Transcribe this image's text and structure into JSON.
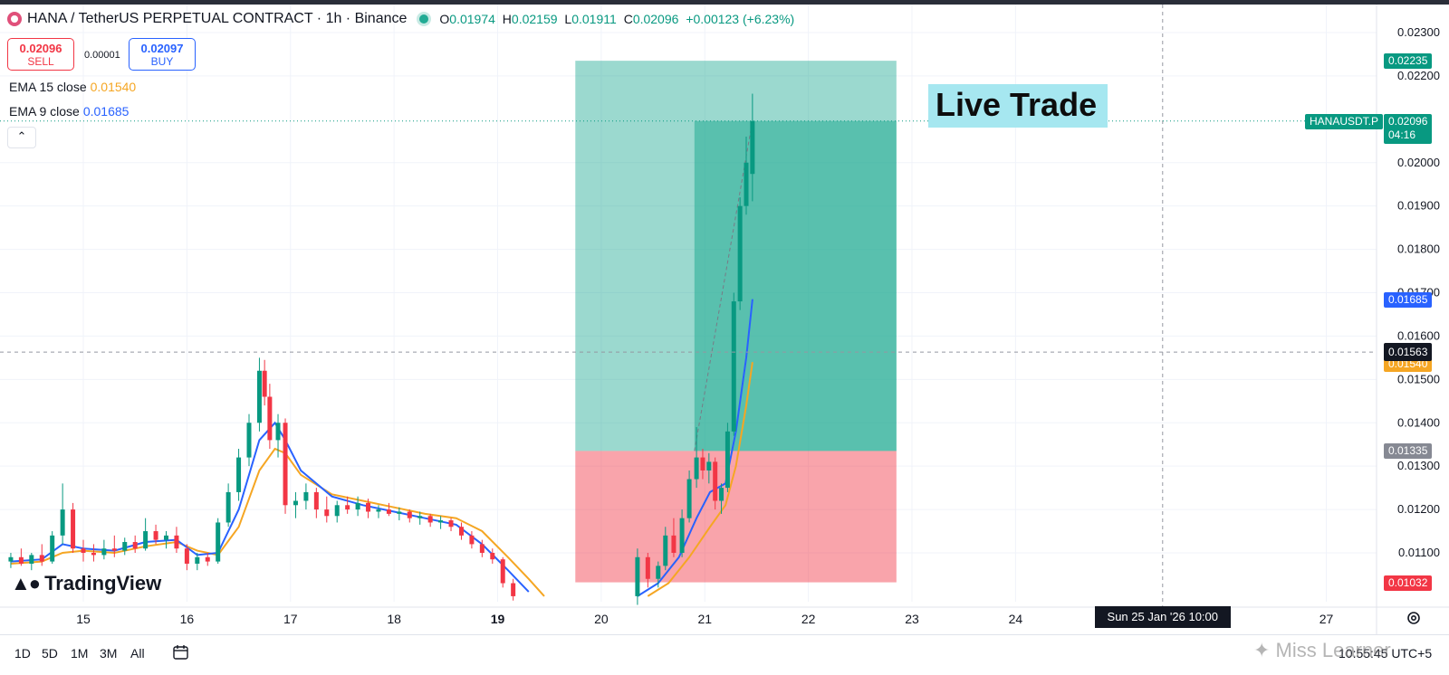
{
  "header": {
    "symbol_title": "HANA / TetherUS PERPETUAL CONTRACT · 1h · Binance",
    "ohlc": {
      "o_label": "O",
      "o": "0.01974",
      "h_label": "H",
      "h": "0.02159",
      "l_label": "L",
      "l": "0.01911",
      "c_label": "C",
      "c": "0.02096",
      "change": "+0.00123 (+6.23%)"
    }
  },
  "trade": {
    "sell_price": "0.02096",
    "sell_label": "SELL",
    "spread": "0.00001",
    "buy_price": "0.02097",
    "buy_label": "BUY"
  },
  "indicators": {
    "ema15_label": "EMA 15 close",
    "ema15_value": "0.01540",
    "ema9_label": "EMA 9 close",
    "ema9_value": "0.01685"
  },
  "annotation": {
    "live_trade": "Live Trade"
  },
  "brand": {
    "name": "TradingView"
  },
  "price_tags": {
    "target": "0.02235",
    "symbol": "HANAUSDT.P",
    "last": "0.02096",
    "countdown": "04:16",
    "ema9": "0.01685",
    "crosshair": "0.01563",
    "ema15": "0.01540",
    "entry": "0.01335",
    "stop": "0.01032"
  },
  "crosshair_date": "Sun 25 Jan '26   10:00",
  "bottom": {
    "ranges": [
      "1D",
      "5D",
      "1M",
      "3M",
      "All"
    ],
    "clock": "10:55:45 UTC+5"
  },
  "watermark": "Miss Learner",
  "colors": {
    "up": "#089981",
    "down": "#f23645",
    "ema9": "#2962ff",
    "ema15": "#f5a623",
    "profit_zone": "#22ab94",
    "loss_zone": "#f23645"
  },
  "chart_data": {
    "type": "candlestick",
    "ylim": [
      0.01,
      0.0235
    ],
    "y_ticks": [
      "0.02300",
      "0.02200",
      "0.02000",
      "0.01900",
      "0.01800",
      "0.01700",
      "0.01600",
      "0.01500",
      "0.01400",
      "0.01300",
      "0.01200",
      "0.01100"
    ],
    "x_ticks": [
      {
        "label": "15",
        "day": 15
      },
      {
        "label": "16",
        "day": 16
      },
      {
        "label": "17",
        "day": 17
      },
      {
        "label": "18",
        "day": 18
      },
      {
        "label": "19",
        "day": 19
      },
      {
        "label": "20",
        "day": 20
      },
      {
        "label": "21",
        "day": 21
      },
      {
        "label": "22",
        "day": 22
      },
      {
        "label": "23",
        "day": 23
      },
      {
        "label": "24",
        "day": 24
      },
      {
        "label": "27",
        "day": 27
      }
    ],
    "xlim_days": [
      14.2,
      27.6
    ],
    "crosshair": {
      "day": 25.42,
      "price": 0.01563
    },
    "last_price": 0.02096,
    "position": {
      "type": "long",
      "start_day": 19.75,
      "end_day": 22.85,
      "entry": 0.01335,
      "target": 0.02235,
      "stop": 0.01032,
      "inner_start_day": 20.9
    },
    "candles": [
      {
        "t": 14.3,
        "o": 0.0108,
        "h": 0.011,
        "l": 0.01065,
        "c": 0.0109
      },
      {
        "t": 14.4,
        "o": 0.0109,
        "h": 0.0111,
        "l": 0.0107,
        "c": 0.01075
      },
      {
        "t": 14.5,
        "o": 0.01075,
        "h": 0.011,
        "l": 0.0106,
        "c": 0.01095
      },
      {
        "t": 14.6,
        "o": 0.01095,
        "h": 0.0112,
        "l": 0.0107,
        "c": 0.0108
      },
      {
        "t": 14.7,
        "o": 0.0108,
        "h": 0.0115,
        "l": 0.01075,
        "c": 0.0114
      },
      {
        "t": 14.8,
        "o": 0.0114,
        "h": 0.0126,
        "l": 0.0112,
        "c": 0.012
      },
      {
        "t": 14.9,
        "o": 0.012,
        "h": 0.01215,
        "l": 0.011,
        "c": 0.0111
      },
      {
        "t": 15.0,
        "o": 0.0111,
        "h": 0.0113,
        "l": 0.0108,
        "c": 0.011
      },
      {
        "t": 15.1,
        "o": 0.011,
        "h": 0.0112,
        "l": 0.0108,
        "c": 0.01095
      },
      {
        "t": 15.2,
        "o": 0.01095,
        "h": 0.0113,
        "l": 0.01085,
        "c": 0.0111
      },
      {
        "t": 15.3,
        "o": 0.0111,
        "h": 0.0114,
        "l": 0.0109,
        "c": 0.01105
      },
      {
        "t": 15.4,
        "o": 0.01105,
        "h": 0.01135,
        "l": 0.01095,
        "c": 0.01125
      },
      {
        "t": 15.5,
        "o": 0.01125,
        "h": 0.0114,
        "l": 0.011,
        "c": 0.0111
      },
      {
        "t": 15.6,
        "o": 0.0111,
        "h": 0.0118,
        "l": 0.01105,
        "c": 0.0115
      },
      {
        "t": 15.7,
        "o": 0.0115,
        "h": 0.01165,
        "l": 0.0112,
        "c": 0.0113
      },
      {
        "t": 15.8,
        "o": 0.0113,
        "h": 0.0115,
        "l": 0.0111,
        "c": 0.0114
      },
      {
        "t": 15.9,
        "o": 0.0114,
        "h": 0.0116,
        "l": 0.011,
        "c": 0.0111
      },
      {
        "t": 16.0,
        "o": 0.0111,
        "h": 0.0112,
        "l": 0.0106,
        "c": 0.01075
      },
      {
        "t": 16.1,
        "o": 0.01075,
        "h": 0.011,
        "l": 0.0106,
        "c": 0.0109
      },
      {
        "t": 16.2,
        "o": 0.0109,
        "h": 0.011,
        "l": 0.0107,
        "c": 0.0108
      },
      {
        "t": 16.3,
        "o": 0.0108,
        "h": 0.0118,
        "l": 0.01075,
        "c": 0.0117
      },
      {
        "t": 16.4,
        "o": 0.0117,
        "h": 0.0126,
        "l": 0.0116,
        "c": 0.0124
      },
      {
        "t": 16.5,
        "o": 0.0124,
        "h": 0.0134,
        "l": 0.0122,
        "c": 0.0132
      },
      {
        "t": 16.6,
        "o": 0.0132,
        "h": 0.0142,
        "l": 0.013,
        "c": 0.014
      },
      {
        "t": 16.7,
        "o": 0.014,
        "h": 0.0155,
        "l": 0.0138,
        "c": 0.0152
      },
      {
        "t": 16.75,
        "o": 0.0152,
        "h": 0.01545,
        "l": 0.0144,
        "c": 0.0146
      },
      {
        "t": 16.8,
        "o": 0.0146,
        "h": 0.0149,
        "l": 0.0134,
        "c": 0.0136
      },
      {
        "t": 16.88,
        "o": 0.0136,
        "h": 0.0142,
        "l": 0.0132,
        "c": 0.014
      },
      {
        "t": 16.95,
        "o": 0.014,
        "h": 0.0141,
        "l": 0.0119,
        "c": 0.0121
      },
      {
        "t": 17.05,
        "o": 0.0121,
        "h": 0.0124,
        "l": 0.0118,
        "c": 0.0122
      },
      {
        "t": 17.15,
        "o": 0.0122,
        "h": 0.0126,
        "l": 0.012,
        "c": 0.0124
      },
      {
        "t": 17.25,
        "o": 0.0124,
        "h": 0.0125,
        "l": 0.0118,
        "c": 0.012
      },
      {
        "t": 17.35,
        "o": 0.012,
        "h": 0.0123,
        "l": 0.0117,
        "c": 0.01185
      },
      {
        "t": 17.45,
        "o": 0.01185,
        "h": 0.0122,
        "l": 0.0117,
        "c": 0.0121
      },
      {
        "t": 17.55,
        "o": 0.0121,
        "h": 0.0123,
        "l": 0.0119,
        "c": 0.012
      },
      {
        "t": 17.65,
        "o": 0.012,
        "h": 0.0123,
        "l": 0.01185,
        "c": 0.01215
      },
      {
        "t": 17.75,
        "o": 0.01215,
        "h": 0.01225,
        "l": 0.0118,
        "c": 0.01195
      },
      {
        "t": 17.85,
        "o": 0.01195,
        "h": 0.0121,
        "l": 0.0118,
        "c": 0.012
      },
      {
        "t": 17.95,
        "o": 0.012,
        "h": 0.01215,
        "l": 0.01185,
        "c": 0.0119
      },
      {
        "t": 18.05,
        "o": 0.0119,
        "h": 0.01205,
        "l": 0.01175,
        "c": 0.01195
      },
      {
        "t": 18.15,
        "o": 0.01195,
        "h": 0.012,
        "l": 0.0117,
        "c": 0.0118
      },
      {
        "t": 18.25,
        "o": 0.0118,
        "h": 0.01195,
        "l": 0.01165,
        "c": 0.01185
      },
      {
        "t": 18.35,
        "o": 0.01185,
        "h": 0.0119,
        "l": 0.0116,
        "c": 0.0117
      },
      {
        "t": 18.45,
        "o": 0.0117,
        "h": 0.01185,
        "l": 0.01155,
        "c": 0.01175
      },
      {
        "t": 18.55,
        "o": 0.01175,
        "h": 0.0118,
        "l": 0.0115,
        "c": 0.0116
      },
      {
        "t": 18.65,
        "o": 0.0116,
        "h": 0.0117,
        "l": 0.0113,
        "c": 0.0114
      },
      {
        "t": 18.75,
        "o": 0.0114,
        "h": 0.0115,
        "l": 0.0111,
        "c": 0.0112
      },
      {
        "t": 18.85,
        "o": 0.0112,
        "h": 0.0113,
        "l": 0.0109,
        "c": 0.011
      },
      {
        "t": 18.95,
        "o": 0.011,
        "h": 0.0111,
        "l": 0.01075,
        "c": 0.01085
      },
      {
        "t": 19.05,
        "o": 0.01085,
        "h": 0.0109,
        "l": 0.0102,
        "c": 0.0103
      },
      {
        "t": 19.15,
        "o": 0.0103,
        "h": 0.0104,
        "l": 0.0099,
        "c": 0.01
      },
      {
        "t": 20.35,
        "o": 0.01,
        "h": 0.0111,
        "l": 0.0098,
        "c": 0.0109
      },
      {
        "t": 20.45,
        "o": 0.0109,
        "h": 0.011,
        "l": 0.0102,
        "c": 0.0104
      },
      {
        "t": 20.55,
        "o": 0.0104,
        "h": 0.0108,
        "l": 0.0102,
        "c": 0.0107
      },
      {
        "t": 20.62,
        "o": 0.0107,
        "h": 0.0116,
        "l": 0.0106,
        "c": 0.0114
      },
      {
        "t": 20.7,
        "o": 0.0114,
        "h": 0.0118,
        "l": 0.0109,
        "c": 0.011
      },
      {
        "t": 20.78,
        "o": 0.011,
        "h": 0.012,
        "l": 0.0109,
        "c": 0.0118
      },
      {
        "t": 20.85,
        "o": 0.0118,
        "h": 0.0129,
        "l": 0.0117,
        "c": 0.0127
      },
      {
        "t": 20.92,
        "o": 0.0127,
        "h": 0.0139,
        "l": 0.0125,
        "c": 0.0132
      },
      {
        "t": 20.98,
        "o": 0.0132,
        "h": 0.0134,
        "l": 0.0127,
        "c": 0.0129
      },
      {
        "t": 21.04,
        "o": 0.0129,
        "h": 0.0133,
        "l": 0.0126,
        "c": 0.0131
      },
      {
        "t": 21.1,
        "o": 0.0131,
        "h": 0.0132,
        "l": 0.012,
        "c": 0.0122
      },
      {
        "t": 21.16,
        "o": 0.0122,
        "h": 0.0126,
        "l": 0.0119,
        "c": 0.0125
      },
      {
        "t": 21.22,
        "o": 0.0125,
        "h": 0.014,
        "l": 0.0124,
        "c": 0.0138
      },
      {
        "t": 21.28,
        "o": 0.0138,
        "h": 0.017,
        "l": 0.0137,
        "c": 0.0168
      },
      {
        "t": 21.34,
        "o": 0.0168,
        "h": 0.0192,
        "l": 0.0166,
        "c": 0.019
      },
      {
        "t": 21.4,
        "o": 0.019,
        "h": 0.0206,
        "l": 0.0188,
        "c": 0.02
      },
      {
        "t": 21.46,
        "o": 0.01974,
        "h": 0.02159,
        "l": 0.01911,
        "c": 0.02096
      }
    ],
    "ema9": [
      [
        14.3,
        0.0108
      ],
      [
        14.6,
        0.01085
      ],
      [
        14.8,
        0.0112
      ],
      [
        15.0,
        0.0111
      ],
      [
        15.3,
        0.01105
      ],
      [
        15.6,
        0.01125
      ],
      [
        15.9,
        0.0113
      ],
      [
        16.1,
        0.01095
      ],
      [
        16.3,
        0.011
      ],
      [
        16.5,
        0.012
      ],
      [
        16.7,
        0.0136
      ],
      [
        16.85,
        0.014
      ],
      [
        16.95,
        0.0136
      ],
      [
        17.1,
        0.0129
      ],
      [
        17.4,
        0.0123
      ],
      [
        17.7,
        0.0121
      ],
      [
        18.0,
        0.01195
      ],
      [
        18.3,
        0.0118
      ],
      [
        18.6,
        0.01165
      ],
      [
        18.85,
        0.0112
      ],
      [
        19.1,
        0.0106
      ],
      [
        19.3,
        0.0101
      ],
      [
        20.35,
        0.01
      ],
      [
        20.55,
        0.0103
      ],
      [
        20.75,
        0.0109
      ],
      [
        20.92,
        0.0118
      ],
      [
        21.05,
        0.0124
      ],
      [
        21.2,
        0.0126
      ],
      [
        21.3,
        0.0138
      ],
      [
        21.4,
        0.0155
      ],
      [
        21.46,
        0.01685
      ]
    ],
    "ema15": [
      [
        14.3,
        0.01075
      ],
      [
        14.6,
        0.0108
      ],
      [
        14.8,
        0.011
      ],
      [
        15.0,
        0.01105
      ],
      [
        15.3,
        0.011
      ],
      [
        15.6,
        0.01115
      ],
      [
        15.9,
        0.01125
      ],
      [
        16.1,
        0.01105
      ],
      [
        16.3,
        0.01095
      ],
      [
        16.5,
        0.0116
      ],
      [
        16.7,
        0.0129
      ],
      [
        16.85,
        0.0134
      ],
      [
        16.95,
        0.0133
      ],
      [
        17.1,
        0.0128
      ],
      [
        17.4,
        0.01235
      ],
      [
        17.7,
        0.0122
      ],
      [
        18.0,
        0.01205
      ],
      [
        18.3,
        0.0119
      ],
      [
        18.6,
        0.0118
      ],
      [
        18.85,
        0.0115
      ],
      [
        19.1,
        0.0109
      ],
      [
        19.3,
        0.0104
      ],
      [
        19.45,
        0.01
      ],
      [
        20.45,
        0.01
      ],
      [
        20.65,
        0.0103
      ],
      [
        20.85,
        0.0109
      ],
      [
        21.05,
        0.0116
      ],
      [
        21.2,
        0.0121
      ],
      [
        21.3,
        0.013
      ],
      [
        21.4,
        0.0144
      ],
      [
        21.46,
        0.0154
      ]
    ]
  }
}
